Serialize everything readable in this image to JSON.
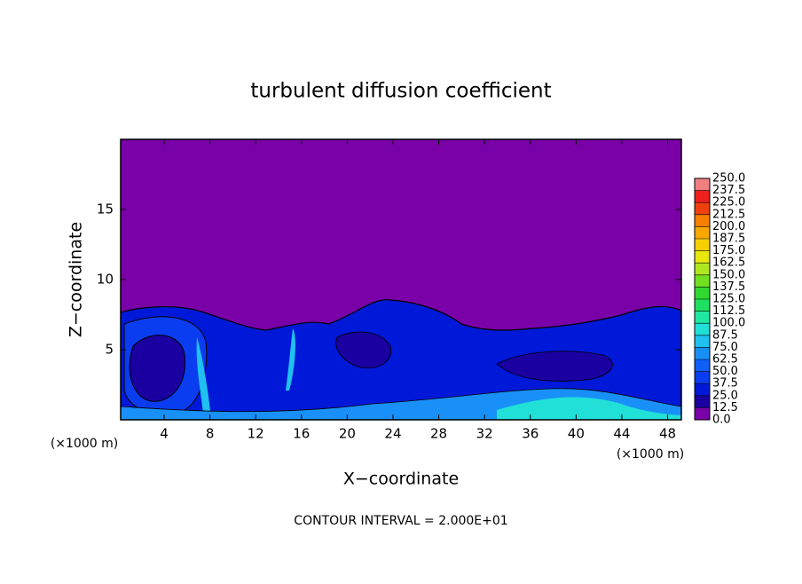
{
  "chart_data": {
    "type": "contour",
    "title": "turbulent diffusion coefficient",
    "x_label": "X−coordinate",
    "y_label": "Z−coordinate",
    "x_unit": "(×1000 m)",
    "y_unit": "(×1000 m)",
    "note": "CONTOUR INTERVAL = 2.000E+01",
    "xlim": [
      0.2,
      49.2
    ],
    "ylim": [
      0,
      20
    ],
    "xticks": [
      4,
      8,
      12,
      16,
      20,
      24,
      28,
      32,
      36,
      40,
      44,
      48
    ],
    "yticks": [
      5,
      10,
      15
    ],
    "colorbar": {
      "levels": [
        {
          "value": 0,
          "label": "0.0"
        },
        {
          "value": 12.5,
          "label": "12.5"
        },
        {
          "value": 25,
          "label": "25.0"
        },
        {
          "value": 37.5,
          "label": "37.5"
        },
        {
          "value": 50,
          "label": "50.0"
        },
        {
          "value": 62.5,
          "label": "62.5"
        },
        {
          "value": 75,
          "label": "75.0"
        },
        {
          "value": 87.5,
          "label": "87.5"
        },
        {
          "value": 100,
          "label": "100.0"
        },
        {
          "value": 112.5,
          "label": "112.5"
        },
        {
          "value": 125,
          "label": "125.0"
        },
        {
          "value": 137.5,
          "label": "137.5"
        },
        {
          "value": 150,
          "label": "150.0"
        },
        {
          "value": 162.5,
          "label": "162.5"
        },
        {
          "value": 175,
          "label": "175.0"
        },
        {
          "value": 187.5,
          "label": "187.5"
        },
        {
          "value": 200,
          "label": "200.0"
        },
        {
          "value": 212.5,
          "label": "212.5"
        },
        {
          "value": 225,
          "label": "225.0"
        },
        {
          "value": 237.5,
          "label": "237.5"
        },
        {
          "value": 250,
          "label": "250.0"
        }
      ],
      "colors": [
        "#7a00a8",
        "#1a00a0",
        "#0018d8",
        "#0a3cf0",
        "#1060f8",
        "#1890f8",
        "#20c0f0",
        "#20e0d8",
        "#20e8a0",
        "#20e060",
        "#30d830",
        "#70e020",
        "#b0e820",
        "#e8e810",
        "#f8d000",
        "#f8a800",
        "#f88000",
        "#f04010",
        "#f02020",
        "#f08080"
      ]
    }
  }
}
